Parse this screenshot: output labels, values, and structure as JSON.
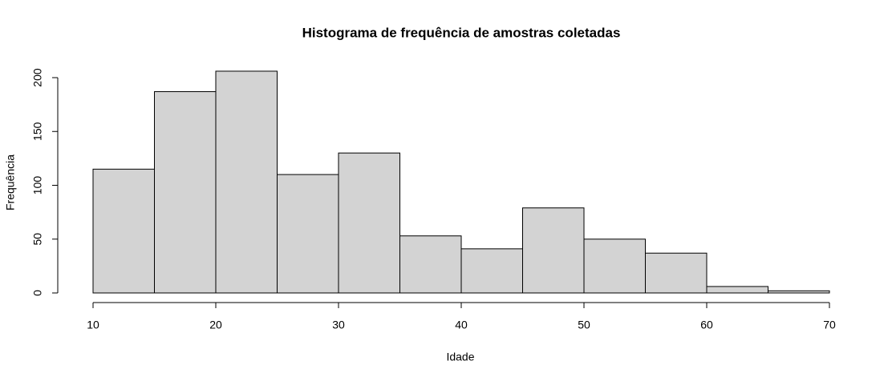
{
  "chart_data": {
    "type": "histogram",
    "title": "Histograma de frequência de amostras coletadas",
    "x_label": "Idade",
    "y_label": "Frequência",
    "bins": [
      10,
      15,
      20,
      25,
      30,
      35,
      40,
      45,
      50,
      55,
      60,
      65,
      70
    ],
    "values": [
      115,
      187,
      206,
      110,
      130,
      53,
      41,
      79,
      50,
      37,
      6,
      2
    ],
    "color": "#d3d3d3",
    "xlim": [
      10,
      70
    ],
    "xticks": [
      10,
      20,
      30,
      40,
      50,
      60,
      70
    ],
    "ylim": [
      0,
      200
    ],
    "yticks": [
      0,
      50,
      100,
      150,
      200
    ]
  }
}
